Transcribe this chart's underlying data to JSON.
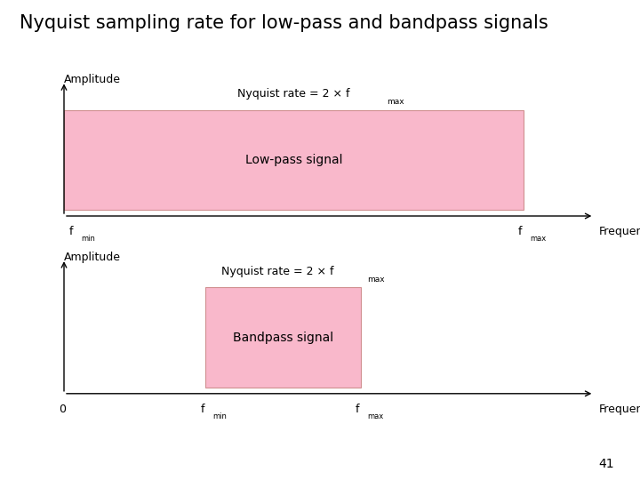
{
  "title": "Nyquist sampling rate for low-pass and bandpass signals",
  "title_fontsize": 15,
  "title_fontstyle": "normal",
  "background_color": "#ffffff",
  "pink_color": "#f9b8cb",
  "pink_edge_color": "#d09090",
  "text_color": "#000000",
  "page_number": "41",
  "lp_amplitude": "Amplitude",
  "lp_nyquist": "Nyquist rate = 2 × f",
  "lp_nyquist_sub": "max",
  "lp_label": "Low-pass signal",
  "lp_fmin": "f",
  "lp_fmin_sub": "min",
  "lp_fmax": "f",
  "lp_fmax_sub": "max",
  "lp_freq_label": "Frequency",
  "bp_amplitude": "Amplitude",
  "bp_nyquist": "Nyquist rate = 2 × f",
  "bp_nyquist_sub": "max",
  "bp_label": "Bandpass signal",
  "bp_zero": "0",
  "bp_fmin": "f",
  "bp_fmin_sub": "min",
  "bp_fmax": "f",
  "bp_fmax_sub": "max",
  "bp_freq_label": "Frequency"
}
